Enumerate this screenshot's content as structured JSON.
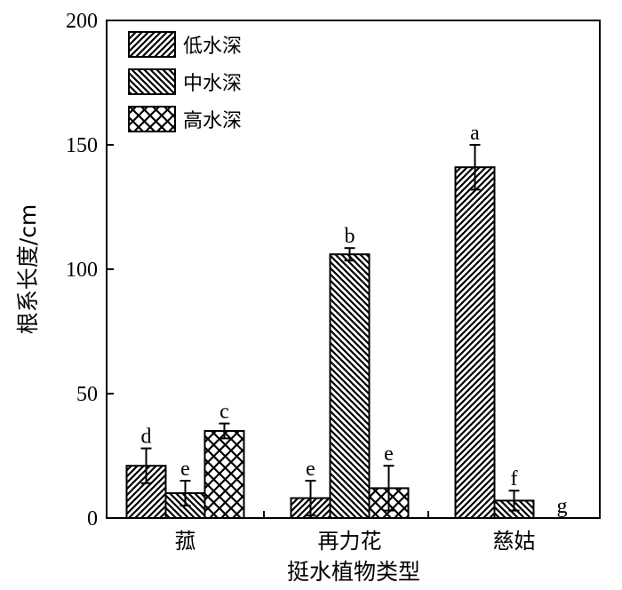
{
  "chart_data": {
    "type": "bar",
    "xlabel": "挺水植物类型",
    "ylabel": "根系长度/cm",
    "ylim": [
      0,
      200
    ],
    "yticks": [
      "0",
      "50",
      "100",
      "150",
      "200"
    ],
    "categories": [
      "菰",
      "再力花",
      "慈姑"
    ],
    "series": [
      {
        "name": "低水深",
        "pattern": "hatch-right",
        "values": [
          21,
          8,
          141
        ],
        "errors": [
          7,
          7,
          9
        ],
        "sig": [
          "d",
          "e",
          "a"
        ]
      },
      {
        "name": "中水深",
        "pattern": "hatch-left",
        "values": [
          10,
          106,
          7
        ],
        "errors": [
          5,
          2.5,
          4
        ],
        "sig": [
          "e",
          "b",
          "f"
        ]
      },
      {
        "name": "高水深",
        "pattern": "crosshatch",
        "values": [
          35,
          12,
          0
        ],
        "errors": [
          3,
          9,
          0
        ],
        "sig": [
          "c",
          "e",
          "g"
        ]
      }
    ],
    "legend": "top-left",
    "grid": false,
    "colors": {
      "ink": "#000000",
      "background": "#ffffff"
    }
  }
}
